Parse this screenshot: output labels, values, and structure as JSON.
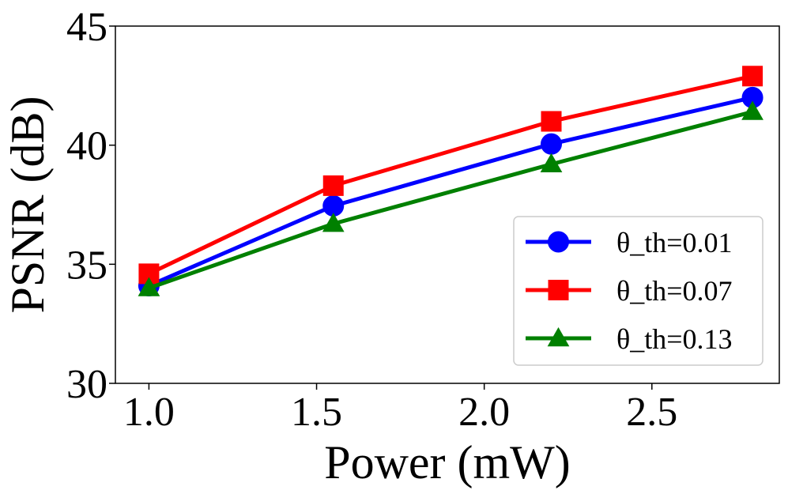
{
  "chart_data": {
    "type": "line",
    "title": "",
    "xlabel": "Power (mW)",
    "ylabel": "PSNR (dB)",
    "x": [
      1.0,
      1.55,
      2.2,
      2.8
    ],
    "xlim": [
      0.9,
      2.88
    ],
    "ylim": [
      30,
      45
    ],
    "xticks": [
      1.0,
      1.5,
      2.0,
      2.5
    ],
    "xtick_labels": [
      "1.0",
      "1.5",
      "2.0",
      "2.5"
    ],
    "yticks": [
      30,
      35,
      40,
      45
    ],
    "ytick_labels": [
      "30",
      "35",
      "40",
      "45"
    ],
    "grid": false,
    "legend_position": "lower-right",
    "series": [
      {
        "name": "θ_th=0.01",
        "color": "#0000ff",
        "marker": "circle",
        "values": [
          34.1,
          37.45,
          40.05,
          42.0
        ]
      },
      {
        "name": "θ_th=0.07",
        "color": "#ff0000",
        "marker": "square",
        "values": [
          34.6,
          38.3,
          41.0,
          42.9
        ]
      },
      {
        "name": "θ_th=0.13",
        "color": "#008000",
        "marker": "triangle",
        "values": [
          34.0,
          36.7,
          39.2,
          41.4
        ]
      }
    ]
  }
}
